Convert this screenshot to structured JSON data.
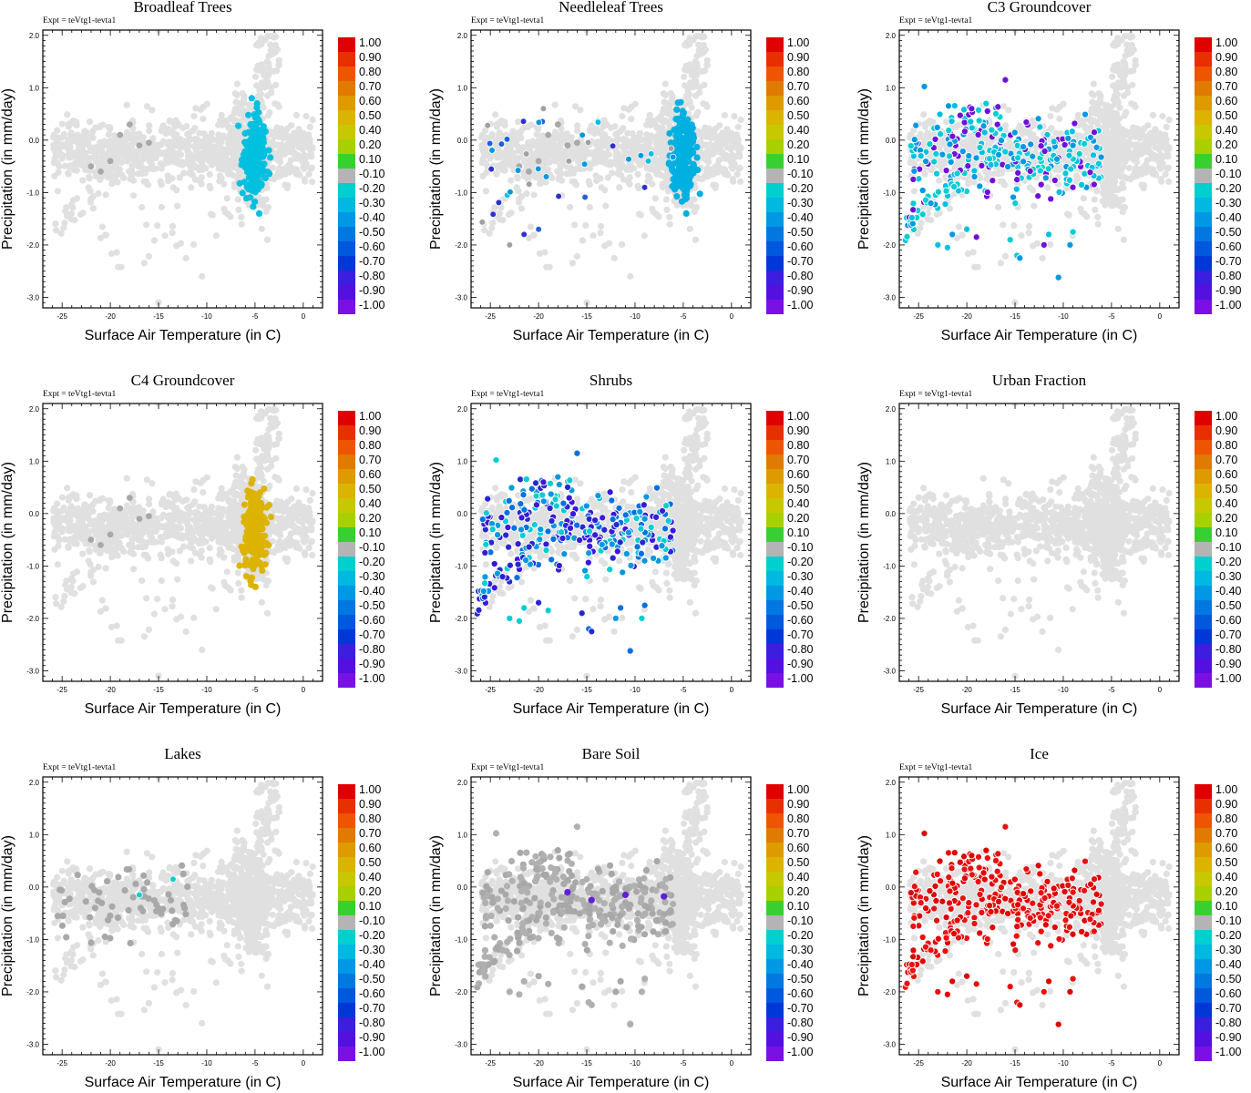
{
  "figure": {
    "expt_label": "Expt = teVtg1-tevta1",
    "xlabel": "Surface Air Temperature (in C)",
    "ylabel": "Precipitation (in mm/day)",
    "xticks": [
      -25,
      -20,
      -15,
      -10,
      -5,
      0
    ],
    "xtick_labels": [
      "-25",
      "-20",
      "-15",
      "-10",
      "-5",
      "0"
    ],
    "yticks": [
      2,
      1,
      0,
      -1,
      -2,
      -3
    ],
    "ytick_labels": [
      "2.0",
      "1.0",
      "0.0",
      "-1.0",
      "-2.0",
      "-3.0"
    ],
    "colorbar": {
      "labels": [
        "1.00",
        "0.90",
        "0.80",
        "0.70",
        "0.60",
        "0.50",
        "0.40",
        "0.20",
        "0.10",
        "-0.10",
        "-0.20",
        "-0.30",
        "-0.40",
        "-0.50",
        "-0.60",
        "-0.70",
        "-0.80",
        "-0.90",
        "-1.00"
      ],
      "colors": [
        "#e00000",
        "#e82f00",
        "#ee5500",
        "#e07a00",
        "#df9a00",
        "#dcb400",
        "#c8c800",
        "#a8d000",
        "#38d030",
        "#b4b4b4",
        "#00cfd0",
        "#00b8e0",
        "#0098e4",
        "#0078e0",
        "#0058dc",
        "#0038d8",
        "#3b1ee0",
        "#5410e0",
        "#7a10e4"
      ]
    },
    "background_color": "#e0e0e0"
  },
  "chart_data": [
    {
      "type": "scatter",
      "title": "Broadleaf Trees",
      "highlight": "warm_band",
      "highlight_color": "#00c0e0",
      "grey_extra": 0.05,
      "xlim": [
        -27,
        2
      ],
      "ylim": [
        -3.2,
        2.1
      ]
    },
    {
      "type": "scatter",
      "title": "Needleleaf Trees",
      "highlight": "warm_band",
      "highlight_color": "#00b0e0",
      "scatter_colors": [
        "#00c0e0",
        "#0098e0",
        "#2060e0",
        "#3030d0",
        "#a0a0a0"
      ],
      "xlim": [
        -27,
        2
      ],
      "ylim": [
        -3.2,
        2.1
      ]
    },
    {
      "type": "scatter",
      "title": "C3 Groundcover",
      "highlight": "cold_cloud",
      "scatter_colors": [
        "#00ccd4",
        "#00c0e0",
        "#0098e0",
        "#7010d8"
      ],
      "xlim": [
        -27,
        2
      ],
      "ylim": [
        -3.2,
        2.1
      ]
    },
    {
      "type": "scatter",
      "title": "C4 Groundcover",
      "highlight": "warm_band",
      "highlight_color": "#dcb400",
      "xlim": [
        -27,
        2
      ],
      "ylim": [
        -3.2,
        2.1
      ]
    },
    {
      "type": "scatter",
      "title": "Shrubs",
      "highlight": "cold_cloud",
      "scatter_colors": [
        "#2828d0",
        "#3a18d8",
        "#0070e0",
        "#0098e0",
        "#00ccd4"
      ],
      "xlim": [
        -27,
        2
      ],
      "ylim": [
        -3.2,
        2.1
      ]
    },
    {
      "type": "scatter",
      "title": "Urban Fraction",
      "highlight": "none",
      "xlim": [
        -27,
        2
      ],
      "ylim": [
        -3.2,
        2.1
      ]
    },
    {
      "type": "scatter",
      "title": "Lakes",
      "highlight": "grey_cold",
      "scatter_colors": [
        "#a8a8a8",
        "#b0b0b0"
      ],
      "xlim": [
        -27,
        2
      ],
      "ylim": [
        -3.2,
        2.1
      ]
    },
    {
      "type": "scatter",
      "title": "Bare Soil",
      "highlight": "grey_cloud",
      "scatter_colors": [
        "#b0b0b0",
        "#a8a8a8"
      ],
      "xlim": [
        -27,
        2
      ],
      "ylim": [
        -3.2,
        2.1
      ]
    },
    {
      "type": "scatter",
      "title": "Ice",
      "highlight": "cold_cloud",
      "scatter_colors": [
        "#e00000",
        "#e81010"
      ],
      "xlim": [
        -27,
        2
      ],
      "ylim": [
        -3.2,
        2.1
      ]
    }
  ]
}
